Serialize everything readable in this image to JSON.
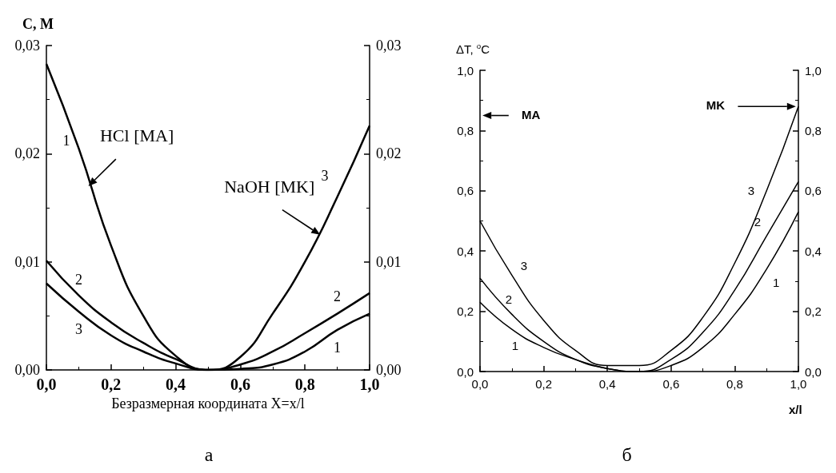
{
  "chart_data": [
    {
      "type": "line",
      "title": "а",
      "xlabel": "Безразмерная координата X=x/l",
      "ylabel": "C, M",
      "marker": "none",
      "line_style": "solid",
      "x": [
        0,
        0.1,
        0.2,
        0.3,
        0.4,
        0.5,
        0.6,
        0.7,
        0.8,
        0.9,
        1.0
      ],
      "series": [
        {
          "name": "1",
          "color": "#000000",
          "values": [
            0.0283,
            0.0205,
            0.0115,
            0.005,
            0.0013,
            0.0,
            0.0001,
            0.0005,
            0.0017,
            0.0037,
            0.0052
          ]
        },
        {
          "name": "2",
          "color": "#000000",
          "values": [
            0.0101,
            0.0069,
            0.0044,
            0.0025,
            0.001,
            0.0,
            0.0005,
            0.0017,
            0.0034,
            0.0052,
            0.0071
          ]
        },
        {
          "name": "3",
          "color": "#000000",
          "values": [
            0.008,
            0.0054,
            0.0032,
            0.0017,
            0.0006,
            0.0,
            0.0012,
            0.0052,
            0.01,
            0.016,
            0.0226
          ]
        }
      ],
      "xlim": [
        0,
        1
      ],
      "xticks": [
        {
          "value": 0,
          "label": "0,0"
        },
        {
          "value": 0.2,
          "label": "0,2"
        },
        {
          "value": 0.4,
          "label": "0,4"
        },
        {
          "value": 0.6,
          "label": "0,6"
        },
        {
          "value": 0.8,
          "label": "0,8"
        },
        {
          "value": 1,
          "label": "1,0"
        }
      ],
      "ylim": [
        0,
        0.03
      ],
      "yticks": [
        {
          "value": 0,
          "label": "0,00"
        },
        {
          "value": 0.01,
          "label": "0,01"
        },
        {
          "value": 0.02,
          "label": "0,02"
        },
        {
          "value": 0.03,
          "label": "0,03"
        }
      ],
      "y2lim": [
        0,
        0.03
      ],
      "y2ticks": [
        {
          "value": 0,
          "label": "0,00"
        },
        {
          "value": 0.01,
          "label": "0,01"
        },
        {
          "value": 0.02,
          "label": "0,02"
        },
        {
          "value": 0.03,
          "label": "0,03"
        }
      ],
      "annotations": [
        {
          "text": "HCl [MA]",
          "x": 0.13,
          "y": 0.017
        },
        {
          "text": "NaOH [MK]",
          "x": 0.847,
          "y": 0.0125
        }
      ],
      "grid": false,
      "legend": false
    },
    {
      "type": "line",
      "title": "б",
      "xlabel": "x/l",
      "ylabel": "ΔT, $^{o}$C",
      "marker": "none",
      "line_style": "solid",
      "x": [
        0,
        0.1,
        0.2,
        0.3,
        0.4,
        0.5,
        0.6,
        0.7,
        0.8,
        0.9,
        1.0
      ],
      "series": [
        {
          "name": "1",
          "color": "#000000",
          "values": [
            0.23,
            0.14,
            0.08,
            0.04,
            0.01,
            0.0,
            0.02,
            0.08,
            0.19,
            0.34,
            0.53
          ]
        },
        {
          "name": "2",
          "color": "#000000",
          "values": [
            0.31,
            0.19,
            0.1,
            0.04,
            0.01,
            0.0,
            0.04,
            0.13,
            0.27,
            0.45,
            0.63
          ]
        },
        {
          "name": "3",
          "color": "#000000",
          "values": [
            0.5,
            0.32,
            0.17,
            0.07,
            0.02,
            0.02,
            0.07,
            0.18,
            0.36,
            0.6,
            0.88
          ]
        }
      ],
      "xlim": [
        0,
        1
      ],
      "xticks": [
        {
          "value": 0,
          "label": "0,0"
        },
        {
          "value": 0.2,
          "label": "0,2"
        },
        {
          "value": 0.4,
          "label": "0,4"
        },
        {
          "value": 0.6,
          "label": "0,6"
        },
        {
          "value": 0.8,
          "label": "0,8"
        },
        {
          "value": 1,
          "label": "1,0"
        }
      ],
      "ylim": [
        0,
        1
      ],
      "yticks": [
        {
          "value": 0,
          "label": "0,0"
        },
        {
          "value": 0.2,
          "label": "0,2"
        },
        {
          "value": 0.4,
          "label": "0,4"
        },
        {
          "value": 0.6,
          "label": "0,6"
        },
        {
          "value": 0.8,
          "label": "0,8"
        },
        {
          "value": 1,
          "label": "1,0"
        }
      ],
      "y2lim": [
        0,
        1
      ],
      "y2ticks": [
        {
          "value": 0,
          "label": "0,0"
        },
        {
          "value": 0.2,
          "label": "0,2"
        },
        {
          "value": 0.4,
          "label": "0,4"
        },
        {
          "value": 0.6,
          "label": "0,6"
        },
        {
          "value": 0.8,
          "label": "0,8"
        },
        {
          "value": 1,
          "label": "1,0"
        }
      ],
      "annotations": [
        "MA",
        "MK"
      ],
      "grid": false,
      "legend": false
    }
  ]
}
